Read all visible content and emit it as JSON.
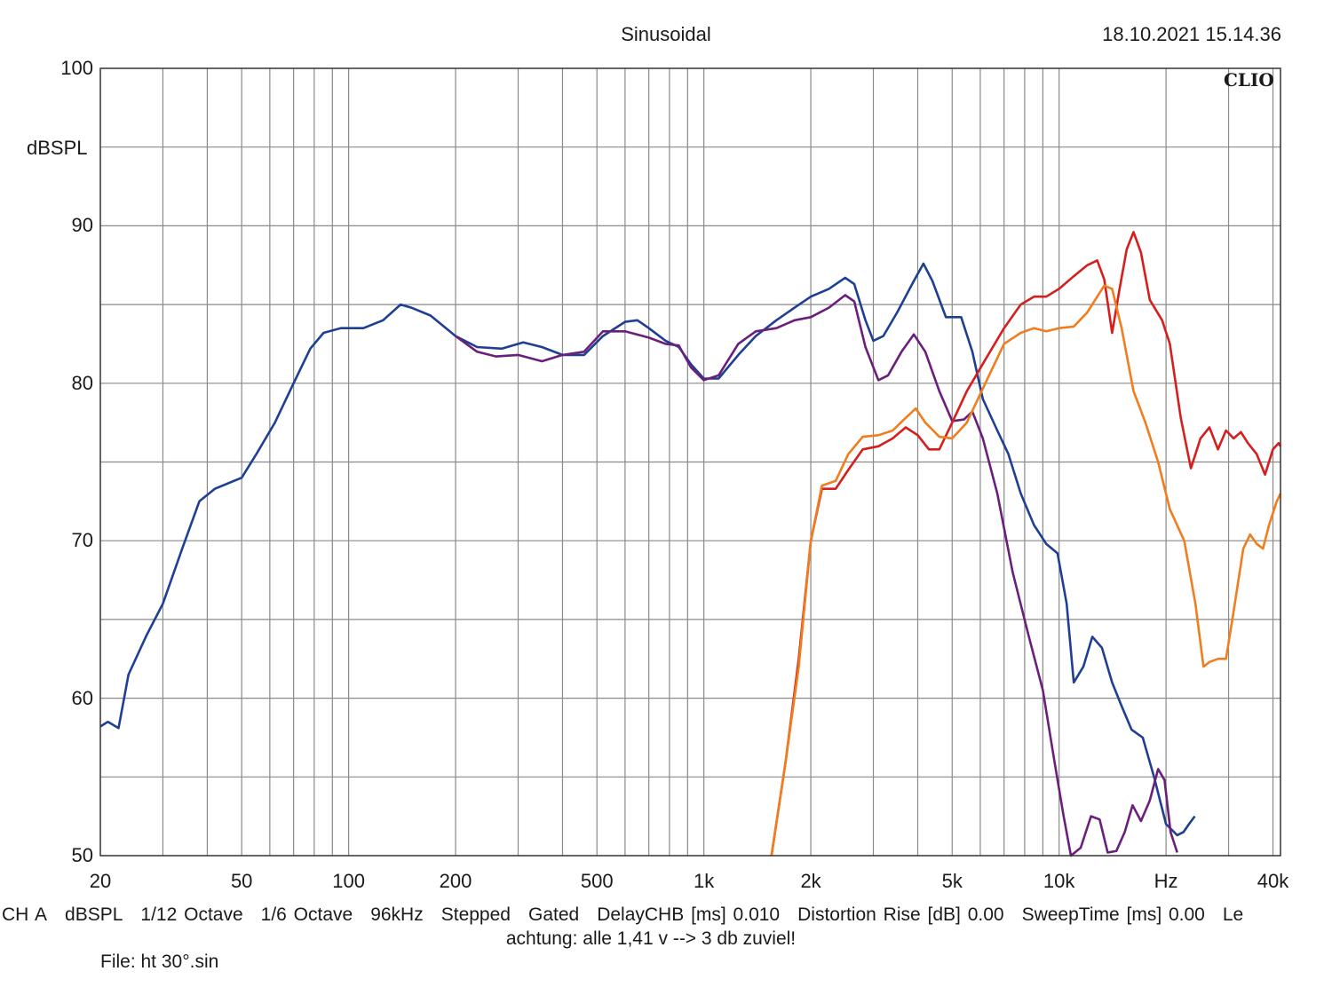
{
  "chart_data": {
    "type": "line",
    "title": "Sinusoidal",
    "timestamp": "18.10.2021 15.14.36",
    "ylabel": "dBSPL",
    "xlabel": "Hz",
    "brand": "CLIO",
    "xscale": "log",
    "xlim": [
      20,
      42000
    ],
    "ylim": [
      50,
      100
    ],
    "y_ticks": [
      {
        "value": 100,
        "label": "100"
      },
      {
        "value": 90,
        "label": "90"
      },
      {
        "value": 80,
        "label": "80"
      },
      {
        "value": 70,
        "label": "70"
      },
      {
        "value": 60,
        "label": "60"
      },
      {
        "value": 50,
        "label": "50"
      }
    ],
    "x_ticks": [
      {
        "value": 20,
        "label": "20"
      },
      {
        "value": 50,
        "label": "50"
      },
      {
        "value": 100,
        "label": "100"
      },
      {
        "value": 200,
        "label": "200"
      },
      {
        "value": 500,
        "label": "500"
      },
      {
        "value": 1000,
        "label": "1k"
      },
      {
        "value": 2000,
        "label": "2k"
      },
      {
        "value": 5000,
        "label": "5k"
      },
      {
        "value": 10000,
        "label": "10k"
      },
      {
        "value": 20000,
        "label": "Hz"
      },
      {
        "value": 40000,
        "label": "40k"
      }
    ],
    "series": [
      {
        "name": "blue",
        "color": "#1f3f94",
        "points": [
          [
            20,
            58.2
          ],
          [
            21,
            58.5
          ],
          [
            22.5,
            58.1
          ],
          [
            24,
            61.5
          ],
          [
            27,
            64
          ],
          [
            30,
            66
          ],
          [
            34,
            69.5
          ],
          [
            38,
            72.5
          ],
          [
            42,
            73.3
          ],
          [
            50,
            74
          ],
          [
            55,
            75.5
          ],
          [
            62,
            77.5
          ],
          [
            70,
            80
          ],
          [
            78,
            82.2
          ],
          [
            85,
            83.2
          ],
          [
            95,
            83.5
          ],
          [
            110,
            83.5
          ],
          [
            125,
            84
          ],
          [
            140,
            85
          ],
          [
            150,
            84.8
          ],
          [
            170,
            84.3
          ],
          [
            200,
            83
          ],
          [
            230,
            82.3
          ],
          [
            270,
            82.2
          ],
          [
            310,
            82.6
          ],
          [
            350,
            82.3
          ],
          [
            400,
            81.8
          ],
          [
            460,
            81.8
          ],
          [
            520,
            83
          ],
          [
            600,
            83.9
          ],
          [
            650,
            84
          ],
          [
            700,
            83.5
          ],
          [
            780,
            82.7
          ],
          [
            850,
            82.3
          ],
          [
            920,
            81.2
          ],
          [
            1000,
            80.3
          ],
          [
            1100,
            80.3
          ],
          [
            1250,
            81.8
          ],
          [
            1400,
            83
          ],
          [
            1600,
            84
          ],
          [
            1800,
            84.8
          ],
          [
            2000,
            85.5
          ],
          [
            2250,
            86
          ],
          [
            2500,
            86.7
          ],
          [
            2650,
            86.3
          ],
          [
            2850,
            84
          ],
          [
            3000,
            82.7
          ],
          [
            3200,
            83
          ],
          [
            3500,
            84.5
          ],
          [
            3900,
            86.5
          ],
          [
            4150,
            87.6
          ],
          [
            4400,
            86.5
          ],
          [
            4800,
            84.2
          ],
          [
            5300,
            84.2
          ],
          [
            5700,
            82
          ],
          [
            6100,
            79
          ],
          [
            6700,
            77
          ],
          [
            7200,
            75.5
          ],
          [
            7800,
            73
          ],
          [
            8500,
            71
          ],
          [
            9200,
            69.8
          ],
          [
            9900,
            69.2
          ],
          [
            10500,
            66
          ],
          [
            11000,
            61
          ],
          [
            11700,
            62
          ],
          [
            12400,
            63.9
          ],
          [
            13200,
            63.2
          ],
          [
            14100,
            61
          ],
          [
            15000,
            59.5
          ],
          [
            16000,
            58
          ],
          [
            17200,
            57.5
          ],
          [
            18500,
            55
          ],
          [
            20000,
            52
          ],
          [
            21500,
            51.3
          ],
          [
            22400,
            51.5
          ],
          [
            23200,
            52
          ],
          [
            24100,
            52.5
          ]
        ]
      },
      {
        "name": "purple",
        "color": "#6a1f7a",
        "points": [
          [
            200,
            83
          ],
          [
            230,
            82
          ],
          [
            260,
            81.7
          ],
          [
            300,
            81.8
          ],
          [
            350,
            81.4
          ],
          [
            400,
            81.8
          ],
          [
            460,
            82
          ],
          [
            520,
            83.3
          ],
          [
            600,
            83.3
          ],
          [
            700,
            82.9
          ],
          [
            780,
            82.5
          ],
          [
            850,
            82.4
          ],
          [
            920,
            81
          ],
          [
            1000,
            80.2
          ],
          [
            1100,
            80.5
          ],
          [
            1250,
            82.5
          ],
          [
            1400,
            83.3
          ],
          [
            1600,
            83.5
          ],
          [
            1800,
            84
          ],
          [
            2000,
            84.2
          ],
          [
            2250,
            84.8
          ],
          [
            2500,
            85.6
          ],
          [
            2650,
            85.2
          ],
          [
            2850,
            82.3
          ],
          [
            3100,
            80.2
          ],
          [
            3300,
            80.5
          ],
          [
            3600,
            82
          ],
          [
            3900,
            83.1
          ],
          [
            4200,
            82
          ],
          [
            4600,
            79.5
          ],
          [
            5000,
            77.6
          ],
          [
            5400,
            77.7
          ],
          [
            5700,
            78.2
          ],
          [
            6100,
            76.5
          ],
          [
            6700,
            73
          ],
          [
            7400,
            68
          ],
          [
            8200,
            64
          ],
          [
            9000,
            60.5
          ],
          [
            9700,
            56
          ],
          [
            10300,
            52.5
          ],
          [
            10800,
            50
          ],
          [
            11500,
            50.5
          ],
          [
            12300,
            52.5
          ],
          [
            13000,
            52.3
          ],
          [
            13700,
            50.2
          ],
          [
            14500,
            50.3
          ],
          [
            15300,
            51.5
          ],
          [
            16100,
            53.2
          ],
          [
            17000,
            52.2
          ],
          [
            18000,
            53.5
          ],
          [
            19000,
            55.5
          ],
          [
            19800,
            54.8
          ],
          [
            20600,
            51.5
          ],
          [
            21500,
            50.2
          ]
        ]
      },
      {
        "name": "red",
        "color": "#d61e1e",
        "points": [
          [
            1550,
            50
          ],
          [
            1700,
            56
          ],
          [
            1850,
            62.5
          ],
          [
            2000,
            70
          ],
          [
            2150,
            73.3
          ],
          [
            2350,
            73.3
          ],
          [
            2550,
            74.5
          ],
          [
            2800,
            75.8
          ],
          [
            3100,
            76
          ],
          [
            3400,
            76.5
          ],
          [
            3700,
            77.2
          ],
          [
            4000,
            76.7
          ],
          [
            4300,
            75.8
          ],
          [
            4600,
            75.8
          ],
          [
            5000,
            77.5
          ],
          [
            5500,
            79.5
          ],
          [
            6200,
            81.5
          ],
          [
            7000,
            83.5
          ],
          [
            7800,
            85
          ],
          [
            8500,
            85.5
          ],
          [
            9200,
            85.5
          ],
          [
            10000,
            86
          ],
          [
            11000,
            86.8
          ],
          [
            12000,
            87.5
          ],
          [
            12800,
            87.8
          ],
          [
            13400,
            86.6
          ],
          [
            14100,
            83.2
          ],
          [
            14800,
            86
          ],
          [
            15500,
            88.5
          ],
          [
            16200,
            89.6
          ],
          [
            17000,
            88.3
          ],
          [
            18000,
            85.3
          ],
          [
            19500,
            84
          ],
          [
            20500,
            82.5
          ],
          [
            22000,
            77.8
          ],
          [
            23500,
            74.6
          ],
          [
            25000,
            76.5
          ],
          [
            26500,
            77.2
          ],
          [
            28000,
            75.8
          ],
          [
            29500,
            77
          ],
          [
            31000,
            76.5
          ],
          [
            32500,
            76.9
          ],
          [
            34000,
            76.2
          ],
          [
            36000,
            75.5
          ],
          [
            38000,
            74.2
          ],
          [
            40000,
            75.8
          ],
          [
            41500,
            76.2
          ],
          [
            42000,
            76
          ]
        ]
      },
      {
        "name": "orange",
        "color": "#f07d1e",
        "points": [
          [
            1550,
            50
          ],
          [
            1700,
            56
          ],
          [
            1850,
            62
          ],
          [
            2000,
            70
          ],
          [
            2150,
            73.5
          ],
          [
            2350,
            73.8
          ],
          [
            2550,
            75.5
          ],
          [
            2800,
            76.6
          ],
          [
            3100,
            76.7
          ],
          [
            3400,
            77
          ],
          [
            3700,
            77.8
          ],
          [
            3950,
            78.4
          ],
          [
            4200,
            77.5
          ],
          [
            4600,
            76.6
          ],
          [
            5000,
            76.5
          ],
          [
            5500,
            77.5
          ],
          [
            6200,
            80
          ],
          [
            7000,
            82.5
          ],
          [
            7800,
            83.2
          ],
          [
            8500,
            83.5
          ],
          [
            9200,
            83.3
          ],
          [
            10000,
            83.5
          ],
          [
            11000,
            83.6
          ],
          [
            12000,
            84.5
          ],
          [
            12800,
            85.5
          ],
          [
            13400,
            86.2
          ],
          [
            14100,
            86
          ],
          [
            15000,
            83.5
          ],
          [
            16200,
            79.5
          ],
          [
            17500,
            77.5
          ],
          [
            19000,
            75
          ],
          [
            20500,
            72
          ],
          [
            22500,
            70
          ],
          [
            24200,
            66
          ],
          [
            25500,
            62
          ],
          [
            26500,
            62.3
          ],
          [
            28000,
            62.5
          ],
          [
            29500,
            62.5
          ],
          [
            31000,
            65.5
          ],
          [
            33000,
            69.5
          ],
          [
            34500,
            70.4
          ],
          [
            36000,
            69.8
          ],
          [
            37500,
            69.5
          ],
          [
            39000,
            71
          ],
          [
            41000,
            72.5
          ],
          [
            42000,
            73
          ]
        ]
      }
    ]
  },
  "footer": {
    "status_items": [
      "CH A",
      "dBSPL",
      "1/12 Octave",
      "1/6 Octave",
      "96kHz",
      "Stepped",
      "Gated",
      "DelayCHB [ms] 0.010",
      "Distortion Rise [dB] 0.00",
      "SweepTime [ms] 0.00",
      "Le"
    ],
    "note": "achtung: alle 1,41 v --> 3 db zuviel!",
    "file": "File: ht 30°.sin"
  }
}
